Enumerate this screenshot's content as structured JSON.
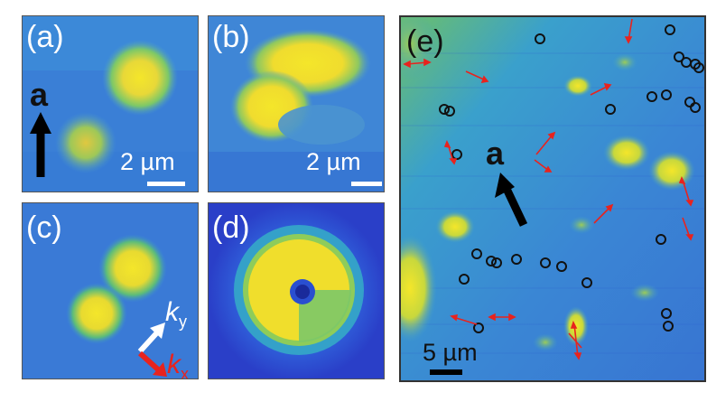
{
  "panels": {
    "a": {
      "label": "(a)",
      "vector_label": "a",
      "scale_label": "2 µm"
    },
    "b": {
      "label": "(b)",
      "scale_label": "2 µm"
    },
    "c": {
      "label": "(c)",
      "ky_label": "k",
      "ky_sub": "y",
      "kx_label": "k",
      "kx_sub": "x"
    },
    "d": {
      "label": "(d)"
    },
    "e": {
      "label": "(e)",
      "vector_label": "a",
      "scale_label": "5 µm"
    }
  },
  "colors": {
    "background": "#2f5bd8",
    "mid": "#35a8c8",
    "green": "#6cc76a",
    "yellow": "#f4e62a",
    "arrow_red": "#e8231e",
    "circle": "#111111"
  }
}
